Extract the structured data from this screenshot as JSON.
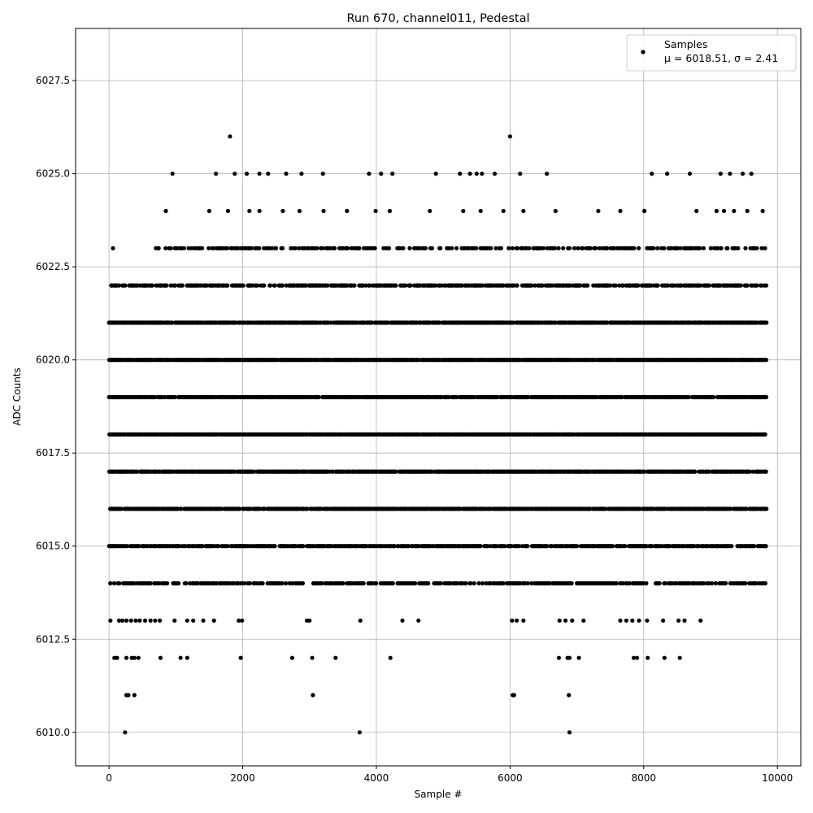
{
  "chart_data": {
    "type": "scatter",
    "title": "Run 670, channel011, Pedestal",
    "xlabel": "Sample #",
    "ylabel": "ADC Counts",
    "xlim": [
      -500,
      10350
    ],
    "ylim": [
      6009.1,
      6028.9
    ],
    "xticks": [
      0,
      2000,
      4000,
      6000,
      8000,
      10000
    ],
    "yticks": [
      6010.0,
      6012.5,
      6015.0,
      6017.5,
      6020.0,
      6022.5,
      6025.0,
      6027.5
    ],
    "xtick_labels": [
      "0",
      "2000",
      "4000",
      "6000",
      "8000",
      "10000"
    ],
    "ytick_labels": [
      "6010.0",
      "6012.5",
      "6015.0",
      "6017.5",
      "6020.0",
      "6022.5",
      "6025.0",
      "6027.5"
    ],
    "grid": true,
    "legend": {
      "placement": "upper-right",
      "label": "Samples",
      "stats": "μ = 6018.51, σ = 2.41"
    },
    "marker_color": "#000000",
    "series": [
      {
        "name": "Samples",
        "points": [
          [
            240,
            6010
          ],
          [
            3750,
            6010
          ],
          [
            6890,
            6010
          ],
          [
            260,
            6011
          ],
          [
            290,
            6011
          ],
          [
            380,
            6011
          ],
          [
            3050,
            6011
          ],
          [
            6040,
            6011
          ],
          [
            6060,
            6011
          ],
          [
            6880,
            6011
          ],
          [
            80,
            6012
          ],
          [
            120,
            6012
          ],
          [
            260,
            6012
          ],
          [
            340,
            6012
          ],
          [
            380,
            6012
          ],
          [
            440,
            6012
          ],
          [
            770,
            6012
          ],
          [
            1070,
            6012
          ],
          [
            1170,
            6012
          ],
          [
            1970,
            6012
          ],
          [
            2740,
            6012
          ],
          [
            3040,
            6012
          ],
          [
            3390,
            6012
          ],
          [
            4210,
            6012
          ],
          [
            6730,
            6012
          ],
          [
            6860,
            6012
          ],
          [
            6890,
            6012
          ],
          [
            7030,
            6012
          ],
          [
            7850,
            6012
          ],
          [
            7900,
            6012
          ],
          [
            8060,
            6012
          ],
          [
            8310,
            6012
          ],
          [
            8540,
            6012
          ],
          [
            20,
            6013
          ],
          [
            150,
            6013
          ],
          [
            200,
            6013
          ],
          [
            260,
            6013
          ],
          [
            330,
            6013
          ],
          [
            400,
            6013
          ],
          [
            460,
            6013
          ],
          [
            540,
            6013
          ],
          [
            620,
            6013
          ],
          [
            690,
            6013
          ],
          [
            760,
            6013
          ],
          [
            980,
            6013
          ],
          [
            1170,
            6013
          ],
          [
            1260,
            6013
          ],
          [
            1410,
            6013
          ],
          [
            1570,
            6013
          ],
          [
            1940,
            6013
          ],
          [
            1990,
            6013
          ],
          [
            2960,
            6013
          ],
          [
            3000,
            6013
          ],
          [
            3760,
            6013
          ],
          [
            4390,
            6013
          ],
          [
            4630,
            6013
          ],
          [
            6030,
            6013
          ],
          [
            6100,
            6013
          ],
          [
            6200,
            6013
          ],
          [
            6740,
            6013
          ],
          [
            6830,
            6013
          ],
          [
            6930,
            6013
          ],
          [
            7100,
            6013
          ],
          [
            7650,
            6013
          ],
          [
            7740,
            6013
          ],
          [
            7830,
            6013
          ],
          [
            7930,
            6013
          ],
          [
            8050,
            6013
          ],
          [
            8290,
            6013
          ],
          [
            8520,
            6013
          ],
          [
            8610,
            6013
          ],
          [
            8850,
            6013
          ],
          [
            2100,
            6024
          ],
          [
            2250,
            6024
          ],
          [
            2600,
            6024
          ],
          [
            850,
            6024
          ],
          [
            1500,
            6024
          ],
          [
            1780,
            6024
          ],
          [
            2850,
            6024
          ],
          [
            3210,
            6024
          ],
          [
            3560,
            6024
          ],
          [
            3990,
            6024
          ],
          [
            4200,
            6024
          ],
          [
            4800,
            6024
          ],
          [
            5300,
            6024
          ],
          [
            5560,
            6024
          ],
          [
            5900,
            6024
          ],
          [
            6200,
            6024
          ],
          [
            6680,
            6024
          ],
          [
            7320,
            6024
          ],
          [
            7650,
            6024
          ],
          [
            8010,
            6024
          ],
          [
            8790,
            6024
          ],
          [
            9090,
            6024
          ],
          [
            9200,
            6024
          ],
          [
            9350,
            6024
          ],
          [
            9550,
            6024
          ],
          [
            9780,
            6024
          ],
          [
            1600,
            6025
          ],
          [
            950,
            6025
          ],
          [
            1880,
            6025
          ],
          [
            2060,
            6025
          ],
          [
            2250,
            6025
          ],
          [
            2380,
            6025
          ],
          [
            2650,
            6025
          ],
          [
            2880,
            6025
          ],
          [
            3200,
            6025
          ],
          [
            3890,
            6025
          ],
          [
            4070,
            6025
          ],
          [
            4240,
            6025
          ],
          [
            4890,
            6025
          ],
          [
            5250,
            6025
          ],
          [
            5400,
            6025
          ],
          [
            5500,
            6025
          ],
          [
            5580,
            6025
          ],
          [
            5770,
            6025
          ],
          [
            6150,
            6025
          ],
          [
            6550,
            6025
          ],
          [
            8120,
            6025
          ],
          [
            8350,
            6025
          ],
          [
            8690,
            6025
          ],
          [
            9150,
            6025
          ],
          [
            9290,
            6025
          ],
          [
            9480,
            6025
          ],
          [
            9610,
            6025
          ],
          [
            1810,
            6026
          ],
          [
            6000,
            6026
          ],
          [
            60,
            6023
          ]
        ],
        "dense_levels": [
          {
            "y": 6014,
            "x_min": 0,
            "x_max": 9820,
            "density": 0.55
          },
          {
            "y": 6015,
            "x_min": 0,
            "x_max": 9830,
            "density": 0.75
          },
          {
            "y": 6016,
            "x_min": 0,
            "x_max": 9840,
            "density": 0.85
          },
          {
            "y": 6017,
            "x_min": 0,
            "x_max": 9840,
            "density": 0.85
          },
          {
            "y": 6018,
            "x_min": 0,
            "x_max": 9840,
            "density": 0.95
          },
          {
            "y": 6019,
            "x_min": 0,
            "x_max": 9840,
            "density": 0.85
          },
          {
            "y": 6020,
            "x_min": 0,
            "x_max": 9840,
            "density": 0.97
          },
          {
            "y": 6021,
            "x_min": 0,
            "x_max": 9840,
            "density": 0.85
          },
          {
            "y": 6022,
            "x_min": 30,
            "x_max": 9830,
            "density": 0.6
          },
          {
            "y": 6023,
            "x_min": 700,
            "x_max": 9820,
            "density": 0.4
          }
        ]
      }
    ]
  }
}
